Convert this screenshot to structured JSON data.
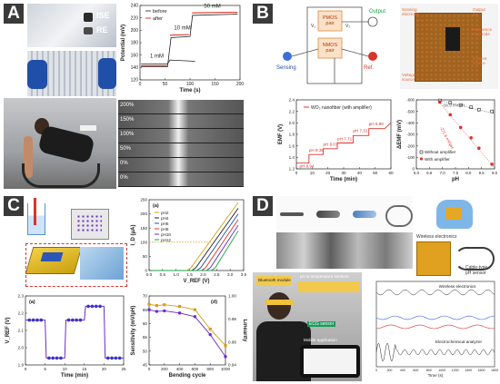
{
  "labels": {
    "a": "A",
    "b": "B",
    "c": "C",
    "d": "D"
  },
  "colors": {
    "label_bg": "#3a3a3a",
    "red": "#d9342b",
    "green": "#1aa64a",
    "purple": "#6a2cc8",
    "gold": "#d4a017",
    "accent_orange": "#e7693a"
  },
  "panelA": {
    "photo_tags": {
      "ise": "ISE",
      "re": "RE"
    },
    "chart": {
      "type": "line",
      "xlabel": "Time (s)",
      "ylabel": "Potential (mV)",
      "xticks": [
        "0",
        "50",
        "100",
        "150",
        "200"
      ],
      "yticks": [
        "120",
        "140",
        "160",
        "180",
        "200",
        "220",
        "240"
      ],
      "legend": [
        "before",
        "after"
      ],
      "annotations": [
        "1 mM",
        "10 mM",
        "50 mM"
      ]
    },
    "strain_labels": [
      "200%",
      "150%",
      "100%",
      "50%",
      "0%",
      "0%"
    ]
  },
  "panelB": {
    "circuit": {
      "pmos": "PMOS\npair",
      "nmos": "NMOS\npair",
      "output": "Output",
      "sensing": "Sensing",
      "ref": "Ref.",
      "v1": "V₁",
      "v2": "V₂"
    },
    "pcb": {
      "sensing_electrode": "Sensing\nelectrode",
      "output": "Output\npin",
      "reference": "Reference\nelectrode",
      "current": "Current\nsource",
      "voltage": "Voltage\nsource"
    },
    "chart1": {
      "type": "line",
      "title": "WO₃ nanofiber (with amplifier)",
      "xlabel": "Time (min)",
      "ylabel": "EMF (V)",
      "xticks": [
        "0",
        "10",
        "20",
        "30",
        "40",
        "50",
        "60"
      ],
      "yticks": [
        "1.2",
        "1.4",
        "1.6",
        "1.8",
        "2.0",
        "2.2",
        "2.4"
      ],
      "annotations": [
        "pH 8.94",
        "pH 8.36",
        "pH 8.07",
        "pH 7.71",
        "pH 7.31",
        "pH 6.90"
      ]
    },
    "chart2": {
      "type": "scatter",
      "xlabel": "pH",
      "ylabel": "ΔEMF (mV)",
      "xticks": [
        "6.0",
        "6.5",
        "7.0",
        "7.5",
        "8.0",
        "8.5",
        "9.0"
      ],
      "yticks": [
        "0",
        "-100",
        "-200",
        "-300",
        "-400",
        "-500",
        "-600"
      ],
      "legend": [
        "Without amplifier",
        "With amplifier"
      ],
      "annotations": [
        "-56.9 mV/pH",
        "-271.6 mV/pH"
      ],
      "series": [
        {
          "name": "Without amplifier",
          "x": [
            6.9,
            7.3,
            7.7,
            8.1,
            8.4,
            8.9
          ],
          "y": [
            -5,
            -25,
            -45,
            -65,
            -85,
            -100
          ]
        },
        {
          "name": "With amplifier",
          "x": [
            6.9,
            7.3,
            7.7,
            8.1,
            8.4,
            8.9
          ],
          "y": [
            -20,
            -130,
            -240,
            -330,
            -420,
            -560
          ]
        }
      ]
    }
  },
  "panelC": {
    "chart1": {
      "type": "line",
      "panel_tag": "(a)",
      "xlabel": "V_REF (V)",
      "ylabel": "I_D (μA)",
      "xticks": [
        "0.0",
        "0.5",
        "1.0",
        "1.5",
        "2.0",
        "2.5",
        "3.0",
        "3.5"
      ],
      "yticks": [
        "0",
        "50",
        "100",
        "150",
        "200",
        "250"
      ],
      "legend": [
        "pH2",
        "pH4",
        "pH6",
        "pH8",
        "pH10",
        "pH12"
      ]
    },
    "chart2": {
      "type": "line",
      "panel_tag": "(a)",
      "xlabel": "Time (min)",
      "ylabel": "V_REF (V)",
      "xticks": [
        "0",
        "5",
        "10",
        "15",
        "20",
        "25"
      ],
      "yticks": [
        "1.9",
        "2.0",
        "2.1",
        "2.2",
        "2.3"
      ]
    },
    "chart3": {
      "type": "line",
      "panel_tag": "(d)",
      "xlabel": "Bending cycle",
      "ylabel": "Sensitivity (mV/pH)",
      "ylabel2": "Linearity",
      "xticks": [
        "0",
        "200",
        "400",
        "600",
        "800",
        "1000"
      ],
      "yticks": [
        "45",
        "50",
        "55",
        "60",
        "65",
        "70"
      ],
      "yticks2": [
        "0.94",
        "0.96",
        "0.98",
        "1.00"
      ]
    }
  },
  "panelD": {
    "tags": {
      "wireless": "Wireless electronics",
      "cable": "Cable-type\npH sensor",
      "bluetooth": "Bluetooth module",
      "ph_temp": "pH & temperature sensors",
      "ecg": "ECG sensor",
      "mobile": "Mobile application",
      "scale": "2 mm"
    },
    "chart": {
      "type": "line",
      "xlabel": "Time (s)",
      "xticks": [
        "0",
        "200",
        "400",
        "600",
        "800",
        "1000",
        "1200",
        "1400",
        "1600",
        "1800"
      ],
      "annotations": [
        "Wireless electronics",
        "Electrochemical analyzer"
      ]
    }
  }
}
